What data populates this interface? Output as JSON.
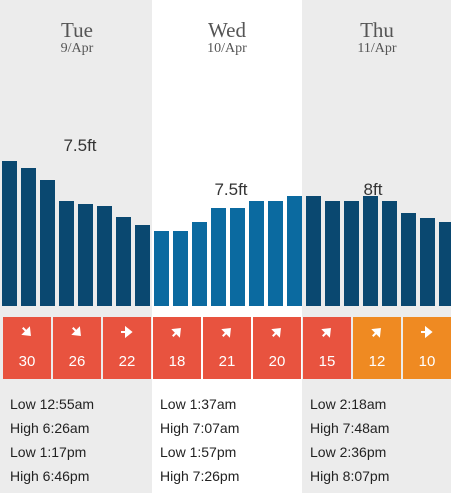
{
  "days": [
    {
      "name": "Tue",
      "date": "9/Apr",
      "peak": "7.5ft",
      "tides": [
        "Low 12:55am",
        "High 6:26am",
        "Low 1:17pm",
        "High 6:46pm"
      ]
    },
    {
      "name": "Wed",
      "date": "10/Apr",
      "peak": "7.5ft",
      "tides": [
        "Low 1:37am",
        "High 7:07am",
        "Low 1:57pm",
        "High 7:26pm"
      ]
    },
    {
      "name": "Thu",
      "date": "11/Apr",
      "peak": "8ft",
      "tides": [
        "Low 2:18am",
        "High 7:48am",
        "Low 2:36pm",
        "High 8:07pm"
      ]
    }
  ],
  "wind": [
    {
      "speed": "30",
      "direction": "southeast",
      "color": "#e8533f"
    },
    {
      "speed": "26",
      "direction": "southeast",
      "color": "#e8533f"
    },
    {
      "speed": "22",
      "direction": "east",
      "color": "#e8533f"
    },
    {
      "speed": "18",
      "direction": "northeast",
      "color": "#e8533f"
    },
    {
      "speed": "21",
      "direction": "northeast",
      "color": "#e8533f"
    },
    {
      "speed": "20",
      "direction": "northeast",
      "color": "#e8533f"
    },
    {
      "speed": "15",
      "direction": "northeast",
      "color": "#e8533f"
    },
    {
      "speed": "12",
      "direction": "northeast",
      "color": "#ef8a22"
    },
    {
      "speed": "10",
      "direction": "east",
      "color": "#ef8a22"
    }
  ],
  "chart_data": {
    "type": "bar",
    "unit": "ft",
    "values": [
      8.3,
      7.9,
      7.2,
      6.0,
      5.8,
      5.7,
      5.1,
      4.6,
      4.3,
      4.3,
      4.8,
      5.6,
      5.6,
      6.0,
      6.0,
      6.3,
      6.3,
      6.0,
      6.0,
      6.3,
      6.0,
      5.3,
      5.0,
      4.8
    ]
  },
  "colors": {
    "bar_dark": "#0a4870",
    "bar_light": "#0b6aa0",
    "shade": "#ececec",
    "shade_alt": "#ffffff"
  }
}
